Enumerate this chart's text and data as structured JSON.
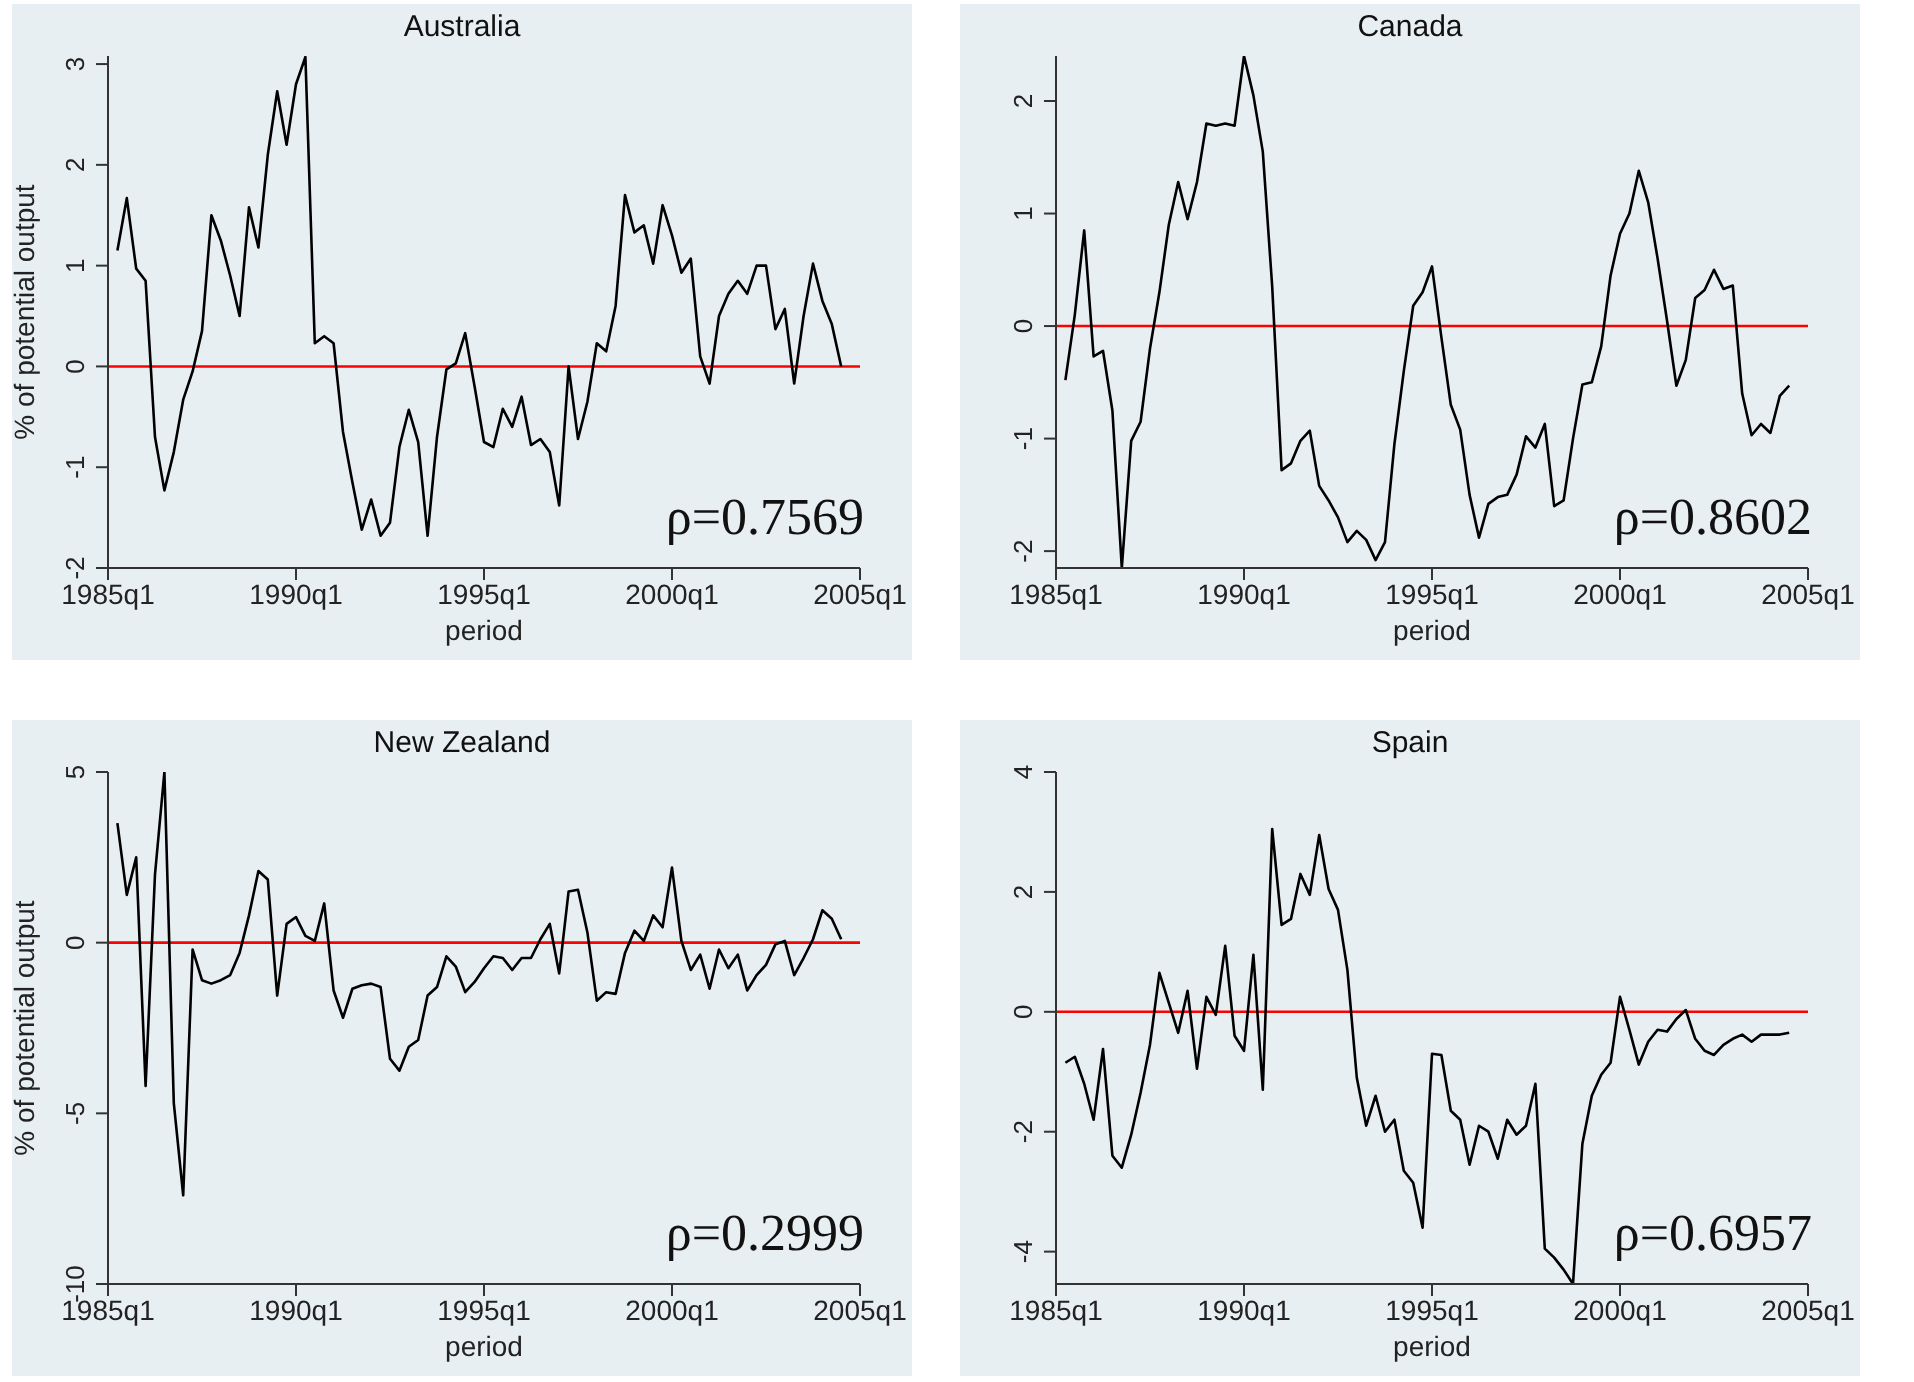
{
  "chart_data": [
    {
      "type": "line",
      "title": "Australia",
      "xlabel": "period",
      "ylabel": "% of potential output",
      "color": "#000000",
      "categories": [
        "1985q1",
        null,
        null,
        null,
        null,
        null,
        null,
        null,
        null,
        null,
        null,
        null,
        null,
        null,
        null,
        null,
        null,
        null,
        null,
        null,
        "1990q1",
        null,
        null,
        null,
        null,
        null,
        null,
        null,
        null,
        null,
        null,
        null,
        null,
        null,
        null,
        null,
        null,
        null,
        null,
        null,
        "1995q1",
        null,
        null,
        null,
        null,
        null,
        null,
        null,
        null,
        null,
        null,
        null,
        null,
        null,
        null,
        null,
        null,
        null,
        null,
        null,
        "2000q1",
        null,
        null,
        null,
        null,
        null,
        null,
        null,
        null,
        null,
        null,
        null,
        null,
        null,
        null,
        null,
        null,
        null,
        null,
        null,
        "2005q1"
      ],
      "values": [
        null,
        1.15,
        1.67,
        0.97,
        0.85,
        -0.7,
        -1.23,
        -0.85,
        -0.33,
        -0.05,
        0.35,
        1.5,
        1.25,
        0.9,
        0.5,
        1.58,
        1.18,
        2.1,
        2.73,
        2.2,
        2.8,
        3.07,
        0.23,
        0.3,
        0.23,
        -0.65,
        -1.15,
        -1.62,
        -1.32,
        -1.68,
        -1.55,
        -0.8,
        -0.43,
        -0.75,
        -1.68,
        -0.7,
        -0.03,
        0.03,
        0.33,
        -0.2,
        -0.75,
        -0.8,
        -0.42,
        -0.6,
        -0.3,
        -0.78,
        -0.72,
        -0.85,
        -1.38,
        0,
        -0.72,
        -0.35,
        0.23,
        0.15,
        0.6,
        1.7,
        1.33,
        1.4,
        1.02,
        1.6,
        1.3,
        0.93,
        1.07,
        0.1,
        -0.17,
        0.5,
        0.72,
        0.85,
        0.72,
        1,
        1,
        0.37,
        0.57,
        -0.17,
        0.5,
        1.02,
        0.65,
        0.42,
        0,
        null,
        null
      ],
      "ylim": [
        -2,
        3.08
      ],
      "yticks": [
        -2,
        -1,
        0,
        1,
        2,
        3
      ],
      "ref_lines": [
        {
          "axis": "y",
          "value": 0,
          "color": "#ff0000"
        }
      ],
      "annotations": [
        "ρ=0.7569"
      ]
    },
    {
      "type": "line",
      "title": "Canada",
      "xlabel": "period",
      "color": "#000000",
      "categories": [
        "1985q1",
        null,
        null,
        null,
        null,
        null,
        null,
        null,
        null,
        null,
        null,
        null,
        null,
        null,
        null,
        null,
        null,
        null,
        null,
        null,
        "1990q1",
        null,
        null,
        null,
        null,
        null,
        null,
        null,
        null,
        null,
        null,
        null,
        null,
        null,
        null,
        null,
        null,
        null,
        null,
        null,
        "1995q1",
        null,
        null,
        null,
        null,
        null,
        null,
        null,
        null,
        null,
        null,
        null,
        null,
        null,
        null,
        null,
        null,
        null,
        null,
        null,
        "2000q1",
        null,
        null,
        null,
        null,
        null,
        null,
        null,
        null,
        null,
        null,
        null,
        null,
        null,
        null,
        null,
        null,
        null,
        null,
        null,
        "2005q1"
      ],
      "values": [
        null,
        -0.48,
        0.1,
        0.85,
        -0.27,
        -0.22,
        -0.75,
        -2.15,
        -1.02,
        -0.85,
        -0.2,
        0.3,
        0.9,
        1.28,
        0.95,
        1.28,
        1.8,
        1.78,
        1.8,
        1.78,
        2.4,
        2.05,
        1.55,
        0.35,
        -1.28,
        -1.22,
        -1.02,
        -0.93,
        -1.42,
        -1.55,
        -1.7,
        -1.92,
        -1.82,
        -1.9,
        -2.08,
        -1.92,
        -1.05,
        -0.4,
        0.18,
        0.3,
        0.53,
        -0.1,
        -0.7,
        -0.92,
        -1.5,
        -1.88,
        -1.58,
        -1.52,
        -1.5,
        -1.32,
        -0.98,
        -1.08,
        -0.87,
        -1.6,
        -1.55,
        -1,
        -0.52,
        -0.5,
        -0.18,
        0.45,
        0.82,
        1,
        1.38,
        1.1,
        0.6,
        0.05,
        -0.53,
        -0.3,
        0.25,
        0.32,
        0.5,
        0.33,
        0.36,
        -0.6,
        -0.97,
        -0.87,
        -0.95,
        -0.62,
        -0.53,
        null,
        null
      ],
      "ylim": [
        -2.15,
        2.4
      ],
      "yticks": [
        -2,
        -1,
        0,
        1,
        2
      ],
      "ref_lines": [
        {
          "axis": "y",
          "value": 0,
          "color": "#ff0000"
        }
      ],
      "annotations": [
        "ρ=0.8602"
      ]
    },
    {
      "type": "line",
      "title": "New Zealand",
      "xlabel": "period",
      "ylabel": "% of potential output",
      "color": "#000000",
      "categories": [
        "1985q1",
        null,
        null,
        null,
        null,
        null,
        null,
        null,
        null,
        null,
        null,
        null,
        null,
        null,
        null,
        null,
        null,
        null,
        null,
        null,
        "1990q1",
        null,
        null,
        null,
        null,
        null,
        null,
        null,
        null,
        null,
        null,
        null,
        null,
        null,
        null,
        null,
        null,
        null,
        null,
        null,
        "1995q1",
        null,
        null,
        null,
        null,
        null,
        null,
        null,
        null,
        null,
        null,
        null,
        null,
        null,
        null,
        null,
        null,
        null,
        null,
        null,
        "2000q1",
        null,
        null,
        null,
        null,
        null,
        null,
        null,
        null,
        null,
        null,
        null,
        null,
        null,
        null,
        null,
        null,
        null,
        null,
        null,
        "2005q1"
      ],
      "values": [
        null,
        3.5,
        1.4,
        2.5,
        -4.2,
        2,
        5,
        -4.7,
        -7.4,
        -0.2,
        -1.1,
        -1.2,
        -1.1,
        -0.95,
        -0.3,
        0.8,
        2.1,
        1.85,
        -1.55,
        0.55,
        0.75,
        0.2,
        0.05,
        1.15,
        -1.4,
        -2.2,
        -1.35,
        -1.25,
        -1.2,
        -1.3,
        -3.4,
        -3.75,
        -3.05,
        -2.85,
        -1.55,
        -1.3,
        -0.4,
        -0.7,
        -1.45,
        -1.15,
        -0.75,
        -0.4,
        -0.45,
        -0.8,
        -0.45,
        -0.45,
        0.1,
        0.55,
        -0.9,
        1.5,
        1.55,
        0.3,
        -1.7,
        -1.45,
        -1.5,
        -0.3,
        0.35,
        0.05,
        0.8,
        0.45,
        2.2,
        0.05,
        -0.8,
        -0.35,
        -1.35,
        -0.2,
        -0.75,
        -0.35,
        -1.4,
        -0.95,
        -0.65,
        -0.05,
        0.05,
        -0.95,
        -0.45,
        0.1,
        0.95,
        0.7,
        0.1,
        null,
        null
      ],
      "ylim": [
        -10,
        5
      ],
      "yticks": [
        -10,
        -5,
        0,
        5
      ],
      "ref_lines": [
        {
          "axis": "y",
          "value": 0,
          "color": "#ff0000"
        }
      ],
      "annotations": [
        "ρ=0.2999"
      ]
    },
    {
      "type": "line",
      "title": "Spain",
      "xlabel": "period",
      "color": "#000000",
      "categories": [
        "1985q1",
        null,
        null,
        null,
        null,
        null,
        null,
        null,
        null,
        null,
        null,
        null,
        null,
        null,
        null,
        null,
        null,
        null,
        null,
        null,
        "1990q1",
        null,
        null,
        null,
        null,
        null,
        null,
        null,
        null,
        null,
        null,
        null,
        null,
        null,
        null,
        null,
        null,
        null,
        null,
        null,
        "1995q1",
        null,
        null,
        null,
        null,
        null,
        null,
        null,
        null,
        null,
        null,
        null,
        null,
        null,
        null,
        null,
        null,
        null,
        null,
        null,
        "2000q1",
        null,
        null,
        null,
        null,
        null,
        null,
        null,
        null,
        null,
        null,
        null,
        null,
        null,
        null,
        null,
        null,
        null,
        null,
        null,
        "2005q1"
      ],
      "values": [
        null,
        -0.85,
        -0.75,
        -1.2,
        -1.8,
        -0.62,
        -2.4,
        -2.6,
        -2.05,
        -1.35,
        -0.55,
        0.65,
        0.15,
        -0.35,
        0.35,
        -0.95,
        0.25,
        -0.05,
        1.1,
        -0.4,
        -0.65,
        0.95,
        -1.3,
        3.05,
        1.45,
        1.55,
        2.3,
        1.95,
        2.95,
        2.05,
        1.7,
        0.7,
        -1.1,
        -1.9,
        -1.4,
        -2,
        -1.8,
        -2.65,
        -2.85,
        -3.6,
        -0.7,
        -0.72,
        -1.65,
        -1.8,
        -2.55,
        -1.9,
        -2,
        -2.45,
        -1.8,
        -2.05,
        -1.9,
        -1.2,
        -3.95,
        -4.1,
        -4.3,
        -4.54,
        -2.2,
        -1.4,
        -1.05,
        -0.85,
        0.25,
        -0.3,
        -0.88,
        -0.5,
        -0.3,
        -0.33,
        -0.12,
        0.03,
        -0.45,
        -0.65,
        -0.72,
        -0.55,
        -0.45,
        -0.38,
        -0.5,
        -0.38,
        -0.38,
        -0.38,
        -0.35,
        null,
        null
      ],
      "ylim": [
        -4.54,
        4
      ],
      "yticks": [
        -4,
        -2,
        0,
        2,
        4
      ],
      "ref_lines": [
        {
          "axis": "y",
          "value": 0,
          "color": "#ff0000"
        }
      ],
      "annotations": [
        "ρ=0.6957"
      ]
    }
  ]
}
